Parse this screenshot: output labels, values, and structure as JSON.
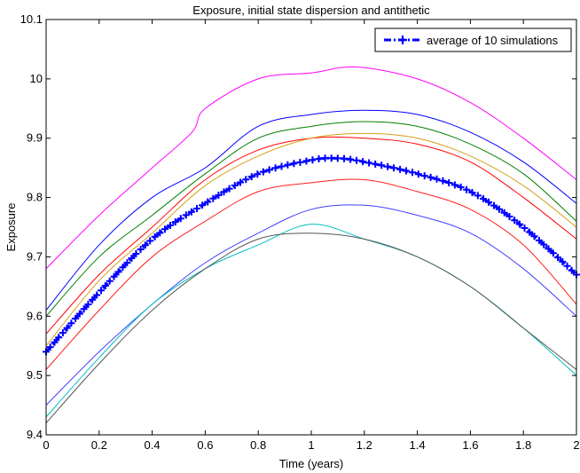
{
  "chart_data": {
    "type": "line",
    "title": "Exposure, initial state dispersion and antithetic",
    "xlabel": "Time (years)",
    "ylabel": "Exposure",
    "xlim": [
      0,
      2
    ],
    "ylim": [
      9.4,
      10.1
    ],
    "xticks": [
      "0",
      "0.2",
      "0.4",
      "0.6",
      "0.8",
      "1",
      "1.2",
      "1.4",
      "1.6",
      "1.8",
      "2"
    ],
    "yticks": [
      "9.4",
      "9.5",
      "9.6",
      "9.7",
      "9.8",
      "9.9",
      "10",
      "10.1"
    ],
    "grid": false,
    "legend_position": "top-right",
    "legend": [
      "average of 10 simulations"
    ],
    "series": [
      {
        "color": "#ff00ff",
        "x": [
          0,
          0.2,
          0.4,
          0.55,
          0.6,
          0.8,
          1.0,
          1.17,
          1.4,
          1.6,
          1.8,
          2.0
        ],
        "y": [
          9.68,
          9.77,
          9.85,
          9.91,
          9.95,
          10.0,
          10.01,
          10.02,
          10.0,
          9.96,
          9.9,
          9.83
        ]
      },
      {
        "color": "#0000ff",
        "x": [
          0,
          0.2,
          0.4,
          0.6,
          0.8,
          1.0,
          1.2,
          1.4,
          1.6,
          1.8,
          2.0
        ],
        "y": [
          9.61,
          9.72,
          9.8,
          9.85,
          9.92,
          9.94,
          9.947,
          9.94,
          9.91,
          9.86,
          9.79
        ]
      },
      {
        "color": "#008000",
        "x": [
          0,
          0.2,
          0.4,
          0.6,
          0.8,
          1.0,
          1.2,
          1.4,
          1.6,
          1.8,
          2.0
        ],
        "y": [
          9.6,
          9.7,
          9.77,
          9.84,
          9.9,
          9.92,
          9.928,
          9.92,
          9.89,
          9.84,
          9.76
        ]
      },
      {
        "color": "#ff0000",
        "x": [
          0,
          0.2,
          0.4,
          0.6,
          0.8,
          1.0,
          1.2,
          1.4,
          1.6,
          1.8,
          2.0
        ],
        "y": [
          9.57,
          9.67,
          9.75,
          9.83,
          9.88,
          9.9,
          9.9,
          9.89,
          9.86,
          9.8,
          9.73
        ]
      },
      {
        "color": "#d4a017",
        "x": [
          0,
          0.2,
          0.4,
          0.6,
          0.8,
          1.0,
          1.2,
          1.4,
          1.6,
          1.8,
          2.0
        ],
        "y": [
          9.55,
          9.66,
          9.74,
          9.82,
          9.87,
          9.9,
          9.908,
          9.9,
          9.87,
          9.82,
          9.75
        ]
      },
      {
        "color": "#ff2020",
        "x": [
          0,
          0.2,
          0.4,
          0.6,
          0.8,
          1.0,
          1.2,
          1.4,
          1.6,
          1.8,
          2.0
        ],
        "y": [
          9.51,
          9.61,
          9.7,
          9.76,
          9.81,
          9.825,
          9.83,
          9.81,
          9.78,
          9.72,
          9.62
        ]
      },
      {
        "color": "#4040ff",
        "x": [
          0,
          0.2,
          0.4,
          0.6,
          0.8,
          1.0,
          1.2,
          1.4,
          1.6,
          1.8,
          2.0
        ],
        "y": [
          9.45,
          9.54,
          9.62,
          9.69,
          9.74,
          9.78,
          9.787,
          9.77,
          9.74,
          9.68,
          9.6
        ]
      },
      {
        "color": "#00c0c0",
        "x": [
          0,
          0.2,
          0.4,
          0.6,
          0.8,
          1.0,
          1.2,
          1.4,
          1.6,
          1.8,
          2.0
        ],
        "y": [
          9.43,
          9.53,
          9.62,
          9.68,
          9.72,
          9.755,
          9.73,
          9.7,
          9.65,
          9.58,
          9.5
        ]
      },
      {
        "color": "#555555",
        "x": [
          0,
          0.2,
          0.4,
          0.6,
          0.8,
          1.0,
          1.2,
          1.4,
          1.6,
          1.8,
          2.0
        ],
        "y": [
          9.42,
          9.52,
          9.61,
          9.68,
          9.73,
          9.74,
          9.73,
          9.7,
          9.65,
          9.58,
          9.51
        ]
      },
      {
        "name": "average of 10 simulations",
        "color": "#0000ff",
        "x": [
          0,
          0.2,
          0.4,
          0.6,
          0.8,
          1.0,
          1.1,
          1.2,
          1.4,
          1.6,
          1.8,
          2.0
        ],
        "y": [
          9.54,
          9.64,
          9.73,
          9.79,
          9.84,
          9.863,
          9.866,
          9.86,
          9.84,
          9.81,
          9.75,
          9.67
        ]
      }
    ]
  }
}
